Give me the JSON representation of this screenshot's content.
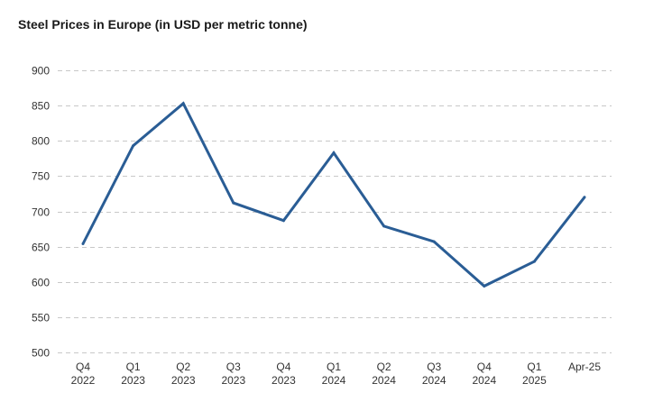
{
  "chart_data": {
    "type": "line",
    "title": "Steel Prices in Europe (in USD per metric tonne)",
    "xlabel": "",
    "ylabel": "",
    "categories": [
      [
        "Q4",
        "2022"
      ],
      [
        "Q1",
        "2023"
      ],
      [
        "Q2",
        "2023"
      ],
      [
        "Q3",
        "2023"
      ],
      [
        "Q4",
        "2023"
      ],
      [
        "Q1",
        "2024"
      ],
      [
        "Q2",
        "2024"
      ],
      [
        "Q3",
        "2024"
      ],
      [
        "Q4",
        "2024"
      ],
      [
        "Q1",
        "2025"
      ],
      [
        "Apr-25"
      ]
    ],
    "series": [
      {
        "values": [
          654,
          793,
          853,
          712,
          687,
          783,
          679,
          657,
          594,
          629,
          720
        ],
        "color": "#2a5d95"
      }
    ],
    "ylim": [
      500,
      900
    ],
    "yticks": [
      500,
      550,
      600,
      650,
      700,
      750,
      800,
      850,
      900
    ],
    "grid": true,
    "legend": "none"
  }
}
